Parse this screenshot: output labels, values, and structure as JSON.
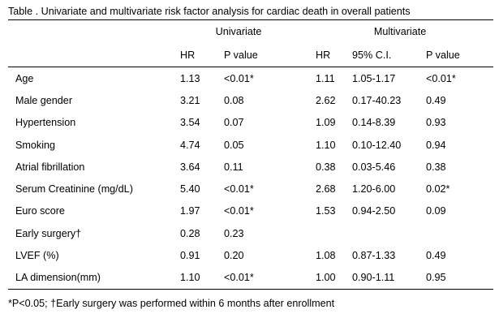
{
  "caption": "Table . Univariate and multivariate risk factor analysis for cardiac death in overall patients",
  "groups": {
    "univariate": "Univariate",
    "multivariate": "Multivariate"
  },
  "columns": {
    "uni_hr": "HR",
    "uni_p": "P value",
    "multi_hr": "HR",
    "multi_ci": "95% C.I.",
    "multi_p": "P value"
  },
  "rows": [
    {
      "label": "Age",
      "uni_hr": "1.13",
      "uni_p": "<0.01*",
      "multi_hr": "1.11",
      "multi_ci": "1.05-1.17",
      "multi_p": "<0.01*"
    },
    {
      "label": "Male gender",
      "uni_hr": "3.21",
      "uni_p": "0.08",
      "multi_hr": "2.62",
      "multi_ci": "0.17-40.23",
      "multi_p": "0.49"
    },
    {
      "label": "Hypertension",
      "uni_hr": "3.54",
      "uni_p": "0.07",
      "multi_hr": "1.09",
      "multi_ci": "0.14-8.39",
      "multi_p": "0.93"
    },
    {
      "label": "Smoking",
      "uni_hr": "4.74",
      "uni_p": "0.05",
      "multi_hr": "1.10",
      "multi_ci": "0.10-12.40",
      "multi_p": "0.94"
    },
    {
      "label": "Atrial fibrillation",
      "uni_hr": "3.64",
      "uni_p": "0.11",
      "multi_hr": "0.38",
      "multi_ci": "0.03-5.46",
      "multi_p": "0.38"
    },
    {
      "label": "Serum Creatinine (mg/dL)",
      "uni_hr": "5.40",
      "uni_p": "<0.01*",
      "multi_hr": "2.68",
      "multi_ci": "1.20-6.00",
      "multi_p": "0.02*"
    },
    {
      "label": "Euro score",
      "uni_hr": "1.97",
      "uni_p": "<0.01*",
      "multi_hr": "1.53",
      "multi_ci": "0.94-2.50",
      "multi_p": "0.09"
    },
    {
      "label": "Early surgery†",
      "uni_hr": "0.28",
      "uni_p": "0.23",
      "multi_hr": "",
      "multi_ci": "",
      "multi_p": ""
    },
    {
      "label": "LVEF (%)",
      "uni_hr": "0.91",
      "uni_p": "0.20",
      "multi_hr": "1.08",
      "multi_ci": "0.87-1.33",
      "multi_p": "0.49"
    },
    {
      "label": "LA dimension(mm)",
      "uni_hr": "1.10",
      "uni_p": "<0.01*",
      "multi_hr": "1.00",
      "multi_ci": "0.90-1.11",
      "multi_p": "0.95"
    }
  ],
  "footnote": "*P<0.05;  †Early surgery was performed within 6 months after enrollment"
}
